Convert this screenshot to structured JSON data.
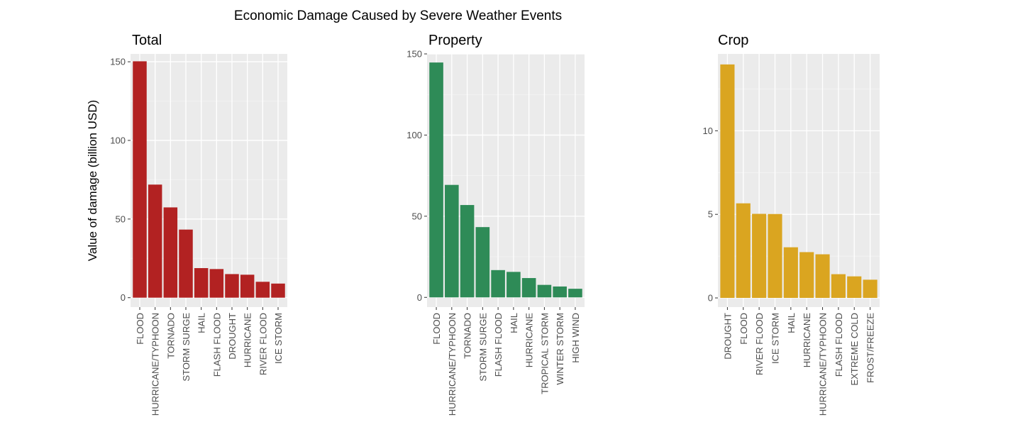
{
  "title": "Economic Damage Caused by Severe Weather Events",
  "chart_data": [
    {
      "type": "bar",
      "title": "Total",
      "xlabel": "",
      "ylabel": "Value of damage (billion USD)",
      "ylim": [
        -6,
        155
      ],
      "yticks": [
        0,
        50,
        100,
        150
      ],
      "color": "#B22222",
      "categories": [
        "FLOOD",
        "HURRICANE/TYPHOON",
        "TORNADO",
        "STORM SURGE",
        "HAIL",
        "FLASH FLOOD",
        "DROUGHT",
        "HURRICANE",
        "RIVER FLOOD",
        "ICE STORM"
      ],
      "values": [
        150.3,
        71.9,
        57.4,
        43.3,
        18.8,
        18.2,
        15.0,
        14.6,
        10.1,
        8.97
      ],
      "grid": true
    },
    {
      "type": "bar",
      "title": "Property",
      "xlabel": "",
      "ylabel": "",
      "ylim": [
        -6,
        150
      ],
      "yticks": [
        0,
        50,
        100,
        150
      ],
      "color": "#2E8B57",
      "categories": [
        "FLOOD",
        "HURRICANE/TYPHOON",
        "TORNADO",
        "STORM SURGE",
        "FLASH FLOOD",
        "HAIL",
        "HURRICANE",
        "TROPICAL STORM",
        "WINTER STORM",
        "HIGH WIND"
      ],
      "values": [
        144.7,
        69.3,
        56.9,
        43.3,
        16.8,
        15.7,
        11.9,
        7.7,
        6.7,
        5.3
      ],
      "grid": true
    },
    {
      "type": "bar",
      "title": "Crop",
      "xlabel": "",
      "ylabel": "",
      "ylim": [
        -0.55,
        14.6
      ],
      "yticks": [
        0,
        5,
        10
      ],
      "color": "#DAA520",
      "categories": [
        "DROUGHT",
        "FLOOD",
        "RIVER FLOOD",
        "ICE STORM",
        "HAIL",
        "HURRICANE",
        "HURRICANE/TYPHOON",
        "FLASH FLOOD",
        "EXTREME COLD",
        "FROST/FREEZE"
      ],
      "values": [
        13.97,
        5.66,
        5.03,
        5.02,
        3.03,
        2.74,
        2.61,
        1.42,
        1.29,
        1.09
      ],
      "grid": true
    }
  ]
}
